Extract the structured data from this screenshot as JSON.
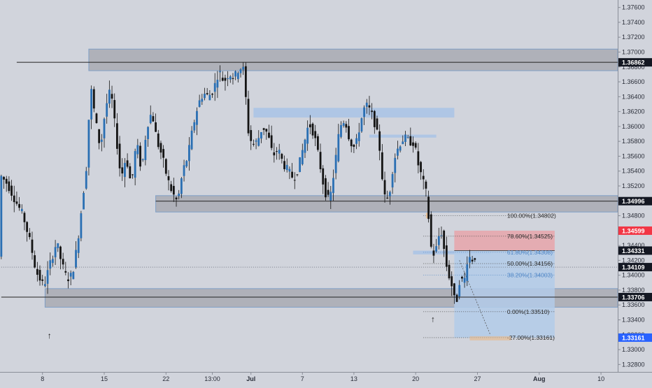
{
  "colors": {
    "background": "#d1d4dc",
    "candle_up": "#2a6fb3",
    "candle_down": "#141414",
    "zone_gray": "#a3a6ae",
    "zone_blue": "#a9c3e6",
    "target_blue": "#b3cbe9",
    "stop_red": "#e7a4aa",
    "fib_label_blue": "#4f86c6",
    "axis_text": "#2a2e39",
    "label_dark": "#131722",
    "label_red": "#f23645",
    "label_blue": "#2962ff"
  },
  "chart_data": {
    "type": "candlestick",
    "instrument_hint": "FX pair",
    "y_axis": {
      "min": 1.327,
      "max": 1.377,
      "tick_labels": [
        "1.37600",
        "1.37400",
        "1.37200",
        "1.37000",
        "1.36800",
        "1.36600",
        "1.36400",
        "1.36200",
        "1.36000",
        "1.35800",
        "1.35600",
        "1.35400",
        "1.35200",
        "1.35000",
        "1.34800",
        "1.34600",
        "1.34400",
        "1.34200",
        "1.34000",
        "1.33800",
        "1.33600",
        "1.33400",
        "1.33200",
        "1.33000",
        "1.32800"
      ],
      "tick_values": [
        1.376,
        1.374,
        1.372,
        1.37,
        1.368,
        1.366,
        1.364,
        1.362,
        1.36,
        1.358,
        1.356,
        1.354,
        1.352,
        1.35,
        1.348,
        1.346,
        1.344,
        1.342,
        1.34,
        1.338,
        1.336,
        1.334,
        1.332,
        1.33,
        1.328
      ]
    },
    "x_axis": {
      "bars_total": 240,
      "tick_labels": [
        {
          "label": "8",
          "bar": 16
        },
        {
          "label": "15",
          "bar": 40
        },
        {
          "label": "22",
          "bar": 64
        },
        {
          "label": "13:00",
          "bar": 82
        },
        {
          "label": "Jul",
          "bar": 97
        },
        {
          "label": "7",
          "bar": 117
        },
        {
          "label": "13",
          "bar": 137
        },
        {
          "label": "20",
          "bar": 161
        },
        {
          "label": "27",
          "bar": 185
        },
        {
          "label": "Aug",
          "bar": 209
        },
        {
          "label": "10",
          "bar": 233
        }
      ]
    },
    "price_path": [
      [
        0,
        1.3535
      ],
      [
        3,
        1.3522
      ],
      [
        6,
        1.35
      ],
      [
        9,
        1.348
      ],
      [
        12,
        1.344
      ],
      [
        14,
        1.3405
      ],
      [
        17,
        1.3385
      ],
      [
        19,
        1.341
      ],
      [
        22,
        1.3445
      ],
      [
        24,
        1.3415
      ],
      [
        26,
        1.3395
      ],
      [
        28,
        1.34
      ],
      [
        30,
        1.344
      ],
      [
        32,
        1.35
      ],
      [
        34,
        1.356
      ],
      [
        35,
        1.366
      ],
      [
        37,
        1.361
      ],
      [
        39,
        1.357
      ],
      [
        41,
        1.3625
      ],
      [
        43,
        1.365
      ],
      [
        45,
        1.359
      ],
      [
        47,
        1.353
      ],
      [
        49,
        1.356
      ],
      [
        51,
        1.352
      ],
      [
        53,
        1.358
      ],
      [
        55,
        1.354
      ],
      [
        57,
        1.36
      ],
      [
        59,
        1.362
      ],
      [
        61,
        1.358
      ],
      [
        63,
        1.356
      ],
      [
        65,
        1.353
      ],
      [
        67,
        1.351
      ],
      [
        69,
        1.3498
      ],
      [
        71,
        1.354
      ],
      [
        73,
        1.356
      ],
      [
        75,
        1.36
      ],
      [
        77,
        1.363
      ],
      [
        79,
        1.3645
      ],
      [
        81,
        1.364
      ],
      [
        83,
        1.365
      ],
      [
        85,
        1.3675
      ],
      [
        87,
        1.366
      ],
      [
        89,
        1.3672
      ],
      [
        91,
        1.3665
      ],
      [
        93,
        1.368
      ],
      [
        95,
        1.3675
      ],
      [
        96,
        1.36
      ],
      [
        98,
        1.3575
      ],
      [
        100,
        1.358
      ],
      [
        102,
        1.36
      ],
      [
        104,
        1.359
      ],
      [
        106,
        1.356
      ],
      [
        108,
        1.357
      ],
      [
        110,
        1.355
      ],
      [
        112,
        1.354
      ],
      [
        114,
        1.353
      ],
      [
        116,
        1.3545
      ],
      [
        118,
        1.3575
      ],
      [
        120,
        1.3605
      ],
      [
        122,
        1.359
      ],
      [
        124,
        1.3555
      ],
      [
        126,
        1.3515
      ],
      [
        128,
        1.3498
      ],
      [
        130,
        1.3545
      ],
      [
        132,
        1.36
      ],
      [
        134,
        1.361
      ],
      [
        136,
        1.358
      ],
      [
        138,
        1.357
      ],
      [
        140,
        1.3605
      ],
      [
        142,
        1.363
      ],
      [
        144,
        1.362
      ],
      [
        146,
        1.36
      ],
      [
        148,
        1.356
      ],
      [
        149,
        1.3505
      ],
      [
        151,
        1.3503
      ],
      [
        153,
        1.3555
      ],
      [
        155,
        1.3575
      ],
      [
        157,
        1.3585
      ],
      [
        159,
        1.358
      ],
      [
        161,
        1.3578
      ],
      [
        162,
        1.3555
      ],
      [
        164,
        1.353
      ],
      [
        166,
        1.3505
      ],
      [
        167,
        1.345
      ],
      [
        168,
        1.3425
      ],
      [
        170,
        1.344
      ],
      [
        171,
        1.3465
      ],
      [
        172,
        1.345
      ],
      [
        173,
        1.342
      ],
      [
        174,
        1.3405
      ],
      [
        176,
        1.338
      ],
      [
        177,
        1.3356
      ],
      [
        178,
        1.338
      ],
      [
        179,
        1.3405
      ],
      [
        180,
        1.338
      ],
      [
        181,
        1.341
      ],
      [
        182,
        1.343
      ],
      [
        183,
        1.3418
      ],
      [
        184,
        1.3425
      ]
    ],
    "candle_seed": 7,
    "horizontal_levels": [
      {
        "price": 1.36862,
        "label": "1.36862",
        "style": "dark",
        "from_bar": 6
      },
      {
        "price": 1.34996,
        "label": "1.34996",
        "style": "dark",
        "from_bar": 60
      },
      {
        "price": 1.33706,
        "label": "1.33706",
        "style": "dark",
        "from_bar": 0
      },
      {
        "price": 1.34109,
        "label": "1.34109",
        "style": "dotted",
        "from_bar": 0
      }
    ],
    "zones": [
      {
        "kind": "gray",
        "bar_from": 34,
        "bar_to": 240,
        "price_top": 1.3704,
        "price_bottom": 1.3675
      },
      {
        "kind": "gray",
        "bar_from": 60,
        "bar_to": 240,
        "price_top": 1.3507,
        "price_bottom": 1.3485
      },
      {
        "kind": "gray",
        "bar_from": 17,
        "bar_to": 240,
        "price_top": 1.3382,
        "price_bottom": 1.3357
      },
      {
        "kind": "blue",
        "bar_from": 98,
        "bar_to": 176,
        "price_top": 1.3625,
        "price_bottom": 1.3612
      },
      {
        "kind": "blue",
        "bar_from": 143,
        "bar_to": 169,
        "price_top": 1.3589,
        "price_bottom": 1.3585
      },
      {
        "kind": "blue",
        "bar_from": 160,
        "bar_to": 190,
        "price_top": 1.3433,
        "price_bottom": 1.3428
      }
    ],
    "fibonacci": {
      "bar_from": 164,
      "bar_to": 215,
      "levels": [
        {
          "label": "100.00%(1.34802)",
          "price": 1.34802,
          "highlight": false
        },
        {
          "label": "78.60%(1.34525)",
          "price": 1.34525,
          "highlight": false
        },
        {
          "label": "61.80%(1.34308)",
          "price": 1.34308,
          "highlight": true
        },
        {
          "label": "50.00%(1.34156)",
          "price": 1.34156,
          "highlight": false
        },
        {
          "label": "38.20%(1.34003)",
          "price": 1.34003,
          "highlight": true
        },
        {
          "label": "0.00%(1.33510)",
          "price": 1.3351,
          "highlight": false
        },
        {
          "label": "-27.00%(1.33161)",
          "price": 1.33161,
          "highlight": false
        }
      ]
    },
    "position": {
      "bar_from": 176,
      "bar_to": 215,
      "entry": 1.34331,
      "stop": 1.34599,
      "target": 1.33161
    },
    "price_labels": [
      {
        "text": "1.36862",
        "price": 1.36862,
        "style": "dark"
      },
      {
        "text": "1.34996",
        "price": 1.34996,
        "style": "dark"
      },
      {
        "text": "1.34599",
        "price": 1.34599,
        "style": "red"
      },
      {
        "text": "1.34331",
        "price": 1.34331,
        "style": "dark"
      },
      {
        "text": "1.34109",
        "price": 1.34109,
        "style": "dark"
      },
      {
        "text": "1.33706",
        "price": 1.33706,
        "style": "dark"
      },
      {
        "text": "1.33161",
        "price": 1.33161,
        "style": "blue"
      }
    ],
    "arrows": [
      {
        "bar": 19,
        "price": 1.3315,
        "glyph": "↑"
      },
      {
        "bar": 168,
        "price": 1.3337,
        "glyph": "↑"
      }
    ],
    "grid": false,
    "legend": "none"
  }
}
